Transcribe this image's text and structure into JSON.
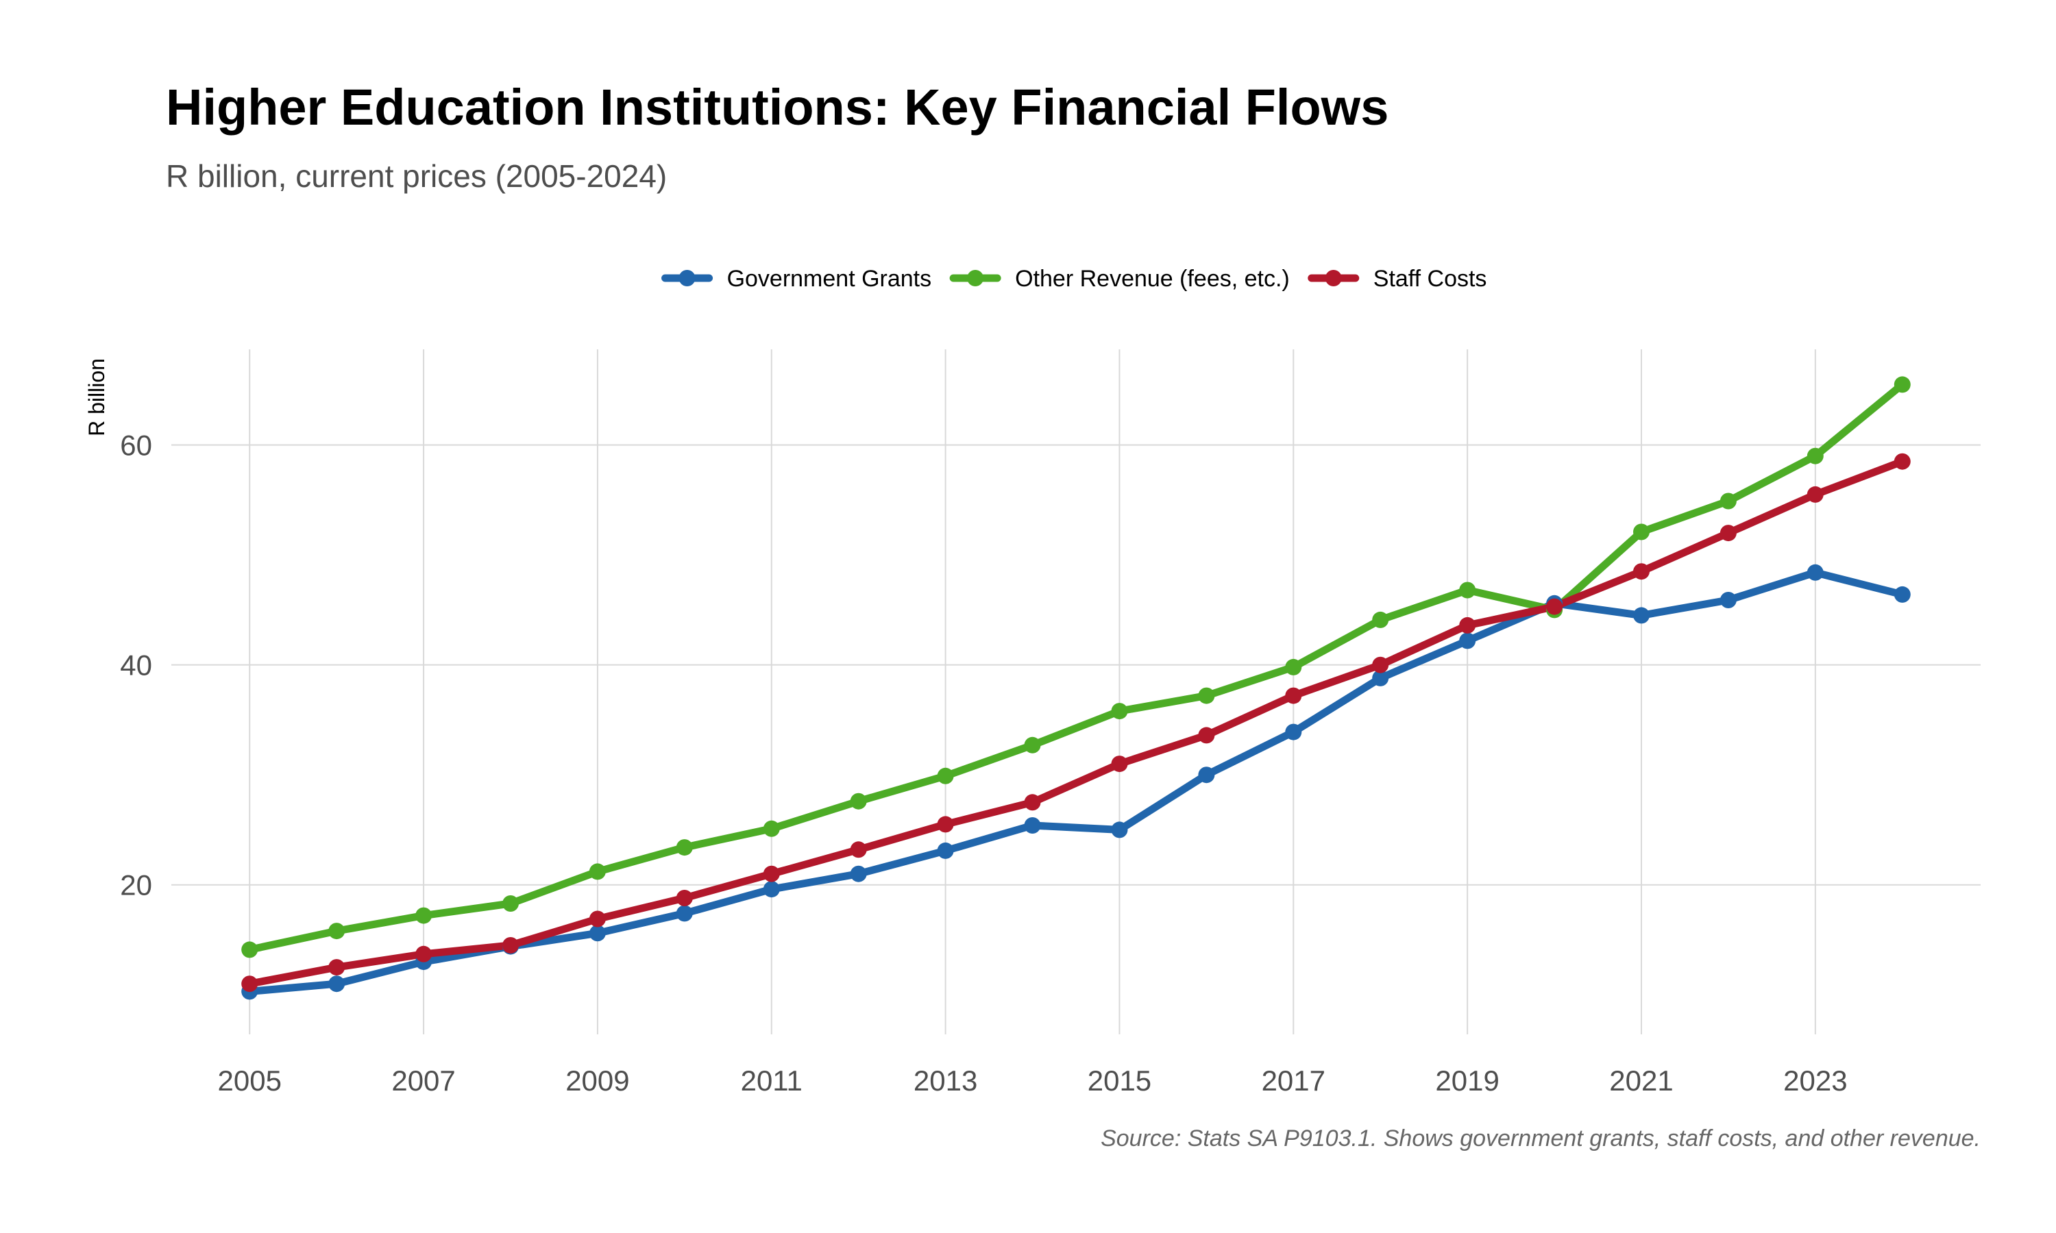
{
  "chart_data": {
    "type": "line",
    "title": "Higher Education Institutions: Key Financial Flows",
    "subtitle": "R billion, current prices (2005-2024)",
    "ylabel": "R billion",
    "xlabel": "",
    "caption": "Source: Stats SA P9103.1. Shows government grants, staff costs, and other revenue.",
    "x": [
      2005,
      2006,
      2007,
      2008,
      2009,
      2010,
      2011,
      2012,
      2013,
      2014,
      2015,
      2016,
      2017,
      2018,
      2019,
      2020,
      2021,
      2022,
      2023,
      2024
    ],
    "xlim": [
      2004.1,
      2024.9
    ],
    "ylim": [
      6.4,
      68.7
    ],
    "x_ticks": [
      2005,
      2007,
      2009,
      2011,
      2013,
      2015,
      2017,
      2019,
      2021,
      2023
    ],
    "y_ticks": [
      20,
      40,
      60
    ],
    "grid": true,
    "legend_position": "top",
    "series": [
      {
        "name": "Government Grants",
        "color": "#2166ac",
        "values": [
          10.3,
          11.0,
          13.0,
          14.4,
          15.6,
          17.4,
          19.6,
          21.0,
          23.1,
          25.4,
          25.0,
          30.0,
          33.9,
          38.8,
          42.2,
          45.6,
          44.5,
          45.9,
          48.4,
          46.4
        ]
      },
      {
        "name": "Other Revenue (fees, etc.)",
        "color": "#4dac26",
        "values": [
          14.1,
          15.8,
          17.2,
          18.3,
          21.2,
          23.4,
          25.1,
          27.6,
          29.9,
          32.7,
          35.8,
          37.2,
          39.8,
          44.1,
          46.8,
          45.0,
          52.1,
          54.9,
          59.0,
          65.5
        ]
      },
      {
        "name": "Staff Costs",
        "color": "#b2182b",
        "values": [
          11.0,
          12.5,
          13.7,
          14.5,
          16.9,
          18.8,
          21.0,
          23.2,
          25.5,
          27.5,
          31.0,
          33.6,
          37.2,
          40.0,
          43.6,
          45.3,
          48.5,
          52.0,
          55.5,
          58.5
        ]
      }
    ]
  }
}
